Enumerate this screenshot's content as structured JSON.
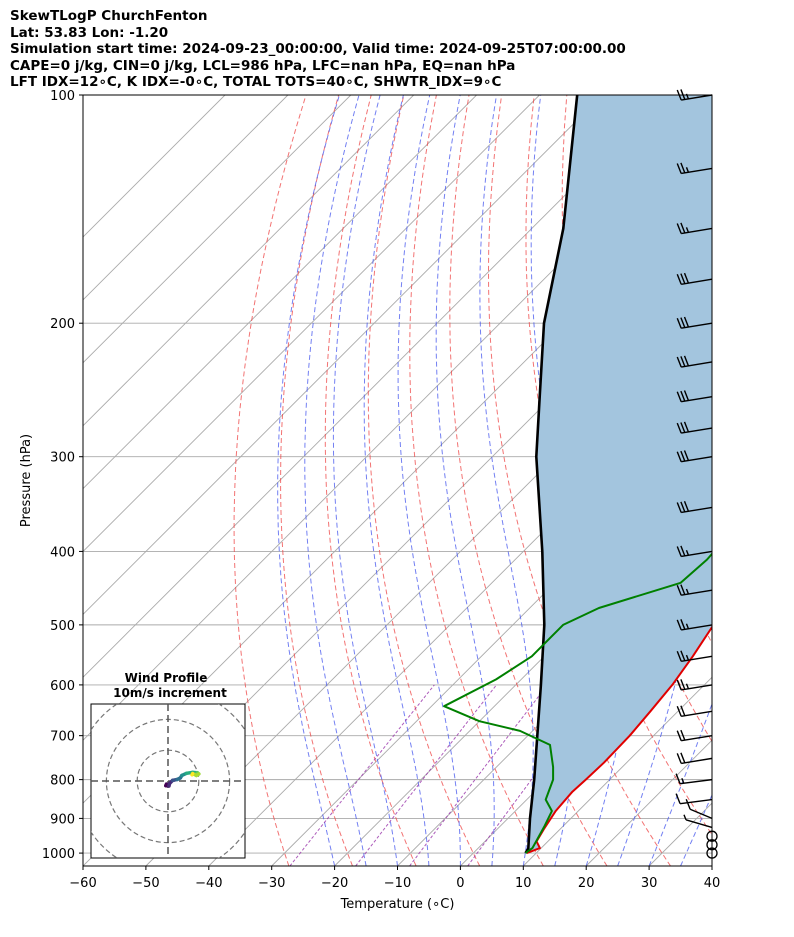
{
  "header": {
    "line1": "SkewTLogP ChurchFenton",
    "line2": "Lat: 53.83   Lon: -1.20",
    "line3": "Simulation start time: 2024-09-23_00:00:00, Valid time: 2024-09-25T07:00:00.00",
    "line4": "CAPE=0 j/kg, CIN=0 j/kg, LCL=986 hPa, LFC=nan hPa, EQ=nan hPa",
    "line5": "LFT IDX=12∘C, K IDX=-0∘C, TOTAL TOTS=40∘C, SHWTR_IDX=9∘C"
  },
  "chart_data": {
    "type": "skewt",
    "xlabel": "Temperature (∘C)",
    "ylabel": "Pressure (hPa)",
    "xlim": [
      -60,
      40
    ],
    "ylim": [
      1040,
      100
    ],
    "x_ticks": [
      "−60",
      "−50",
      "−40",
      "−30",
      "−20",
      "−10",
      "0",
      "10",
      "20",
      "30",
      "40"
    ],
    "y_ticks": [
      "100",
      "200",
      "300",
      "400",
      "500",
      "600",
      "700",
      "800",
      "900",
      "1000"
    ],
    "colors": {
      "temperature": "#e00000",
      "dewpoint": "#008000",
      "parcel": "#000000",
      "cape_fill": "#a3c5de",
      "dry_adiabat": "#ee4444",
      "moist_adiabat": "#4455ee",
      "mixing_ratio": "#9933aa",
      "isotherm": "#aaaaaa"
    },
    "temperature_profile": [
      {
        "p": 1000,
        "t": 8.5
      },
      {
        "p": 985,
        "t": 9.8
      },
      {
        "p": 965,
        "t": 8.2
      },
      {
        "p": 930,
        "t": 7.4
      },
      {
        "p": 880,
        "t": 6.4
      },
      {
        "p": 830,
        "t": 6.0
      },
      {
        "p": 800,
        "t": 6.2
      },
      {
        "p": 760,
        "t": 6.4
      },
      {
        "p": 700,
        "t": 6.2
      },
      {
        "p": 650,
        "t": 5.6
      },
      {
        "p": 600,
        "t": 4.9
      },
      {
        "p": 550,
        "t": 3.6
      },
      {
        "p": 500,
        "t": 1.9
      },
      {
        "p": 450,
        "t": -1.2
      },
      {
        "p": 400,
        "t": -2.8
      },
      {
        "p": 370,
        "t": -4.3
      },
      {
        "p": 330,
        "t": -7.8
      },
      {
        "p": 300,
        "t": -11.5
      },
      {
        "p": 275,
        "t": -14.6
      },
      {
        "p": 265,
        "t": -16.2
      },
      {
        "p": 255,
        "t": -16.8
      },
      {
        "p": 245,
        "t": -17.0
      },
      {
        "p": 225,
        "t": -18.5
      },
      {
        "p": 200,
        "t": -20.2
      },
      {
        "p": 185,
        "t": -21.0
      },
      {
        "p": 170,
        "t": -22.5
      },
      {
        "p": 160,
        "t": -25.0
      },
      {
        "p": 147,
        "t": -31.0
      },
      {
        "p": 133,
        "t": -35.0
      },
      {
        "p": 122,
        "t": -41.0
      },
      {
        "p": 100,
        "t": -53.5
      }
    ],
    "dewpoint_profile": [
      {
        "p": 1000,
        "t": 8.3
      },
      {
        "p": 985,
        "t": 8.6
      },
      {
        "p": 960,
        "t": 8.0
      },
      {
        "p": 920,
        "t": 7.0
      },
      {
        "p": 880,
        "t": 5.8
      },
      {
        "p": 850,
        "t": 3.0
      },
      {
        "p": 800,
        "t": 1.0
      },
      {
        "p": 770,
        "t": -1.0
      },
      {
        "p": 720,
        "t": -5.0
      },
      {
        "p": 690,
        "t": -12.0
      },
      {
        "p": 670,
        "t": -20.0
      },
      {
        "p": 640,
        "t": -28.0
      },
      {
        "p": 590,
        "t": -24.0
      },
      {
        "p": 550,
        "t": -22.0
      },
      {
        "p": 500,
        "t": -22.0
      },
      {
        "p": 475,
        "t": -19.0
      },
      {
        "p": 440,
        "t": -10.0
      },
      {
        "p": 410,
        "t": -9.5
      },
      {
        "p": 380,
        "t": -10.0
      },
      {
        "p": 350,
        "t": -11.5
      },
      {
        "p": 300,
        "t": -16.0
      },
      {
        "p": 265,
        "t": -20.0
      },
      {
        "p": 250,
        "t": -20.0
      },
      {
        "p": 215,
        "t": -26.0
      },
      {
        "p": 195,
        "t": -32.0
      },
      {
        "p": 175,
        "t": -38.0
      },
      {
        "p": 160,
        "t": -43.0
      },
      {
        "p": 145,
        "t": -47.0
      },
      {
        "p": 130,
        "t": -50.0
      },
      {
        "p": 118,
        "t": -55.0
      },
      {
        "p": 100,
        "t": -66.0
      }
    ],
    "parcel_profile": [
      {
        "p": 1000,
        "t": 8.3
      },
      {
        "p": 986,
        "t": 8.0
      },
      {
        "p": 900,
        "t": 3.5
      },
      {
        "p": 800,
        "t": -2.0
      },
      {
        "p": 700,
        "t": -8.5
      },
      {
        "p": 600,
        "t": -16.0
      },
      {
        "p": 500,
        "t": -25.0
      },
      {
        "p": 400,
        "t": -37.0
      },
      {
        "p": 300,
        "t": -53.0
      },
      {
        "p": 250,
        "t": -62.0
      },
      {
        "p": 200,
        "t": -73.0
      },
      {
        "p": 150,
        "t": -85.0
      },
      {
        "p": 100,
        "t": -104.0
      }
    ],
    "wind_barbs": [
      {
        "p": 1000,
        "speed_kt": 0,
        "dir": 0
      },
      {
        "p": 975,
        "speed_kt": 0,
        "dir": 0
      },
      {
        "p": 950,
        "speed_kt": 0,
        "dir": 0
      },
      {
        "p": 925,
        "speed_kt": 8,
        "dir": 310
      },
      {
        "p": 900,
        "speed_kt": 10,
        "dir": 320
      },
      {
        "p": 850,
        "speed_kt": 12,
        "dir": 250
      },
      {
        "p": 800,
        "speed_kt": 18,
        "dir": 250
      },
      {
        "p": 750,
        "speed_kt": 22,
        "dir": 245
      },
      {
        "p": 700,
        "speed_kt": 22,
        "dir": 245
      },
      {
        "p": 650,
        "speed_kt": 24,
        "dir": 245
      },
      {
        "p": 600,
        "speed_kt": 25,
        "dir": 245
      },
      {
        "p": 550,
        "speed_kt": 25,
        "dir": 245
      },
      {
        "p": 500,
        "speed_kt": 25,
        "dir": 245
      },
      {
        "p": 450,
        "speed_kt": 25,
        "dir": 245
      },
      {
        "p": 400,
        "speed_kt": 28,
        "dir": 245
      },
      {
        "p": 350,
        "speed_kt": 30,
        "dir": 245
      },
      {
        "p": 300,
        "speed_kt": 32,
        "dir": 245
      },
      {
        "p": 275,
        "speed_kt": 32,
        "dir": 245
      },
      {
        "p": 250,
        "speed_kt": 30,
        "dir": 245
      },
      {
        "p": 225,
        "speed_kt": 30,
        "dir": 245
      },
      {
        "p": 200,
        "speed_kt": 30,
        "dir": 245
      },
      {
        "p": 175,
        "speed_kt": 30,
        "dir": 245
      },
      {
        "p": 150,
        "speed_kt": 28,
        "dir": 245
      },
      {
        "p": 125,
        "speed_kt": 28,
        "dir": 245
      },
      {
        "p": 100,
        "speed_kt": 28,
        "dir": 245
      }
    ],
    "hodograph": {
      "title": "Wind Profile",
      "subtitle": "10m/s increment",
      "points": [
        {
          "u": -0.5,
          "v": -1.0
        },
        {
          "u": -0.7,
          "v": -1.5
        },
        {
          "u": 0.3,
          "v": -1.6
        },
        {
          "u": 0.5,
          "v": -0.8
        },
        {
          "u": 1.5,
          "v": 0.2
        },
        {
          "u": 3.0,
          "v": 0.5
        },
        {
          "u": 4.0,
          "v": 1.0
        },
        {
          "u": 4.5,
          "v": 1.8
        },
        {
          "u": 6.0,
          "v": 2.5
        },
        {
          "u": 8.0,
          "v": 2.8
        },
        {
          "u": 9.5,
          "v": 2.7
        },
        {
          "u": 10.0,
          "v": 2.3
        },
        {
          "u": 9.2,
          "v": 1.8
        },
        {
          "u": 8.0,
          "v": 2.4
        },
        {
          "u": 7.8,
          "v": 2.0
        }
      ],
      "rings": [
        10,
        20,
        30
      ]
    }
  }
}
